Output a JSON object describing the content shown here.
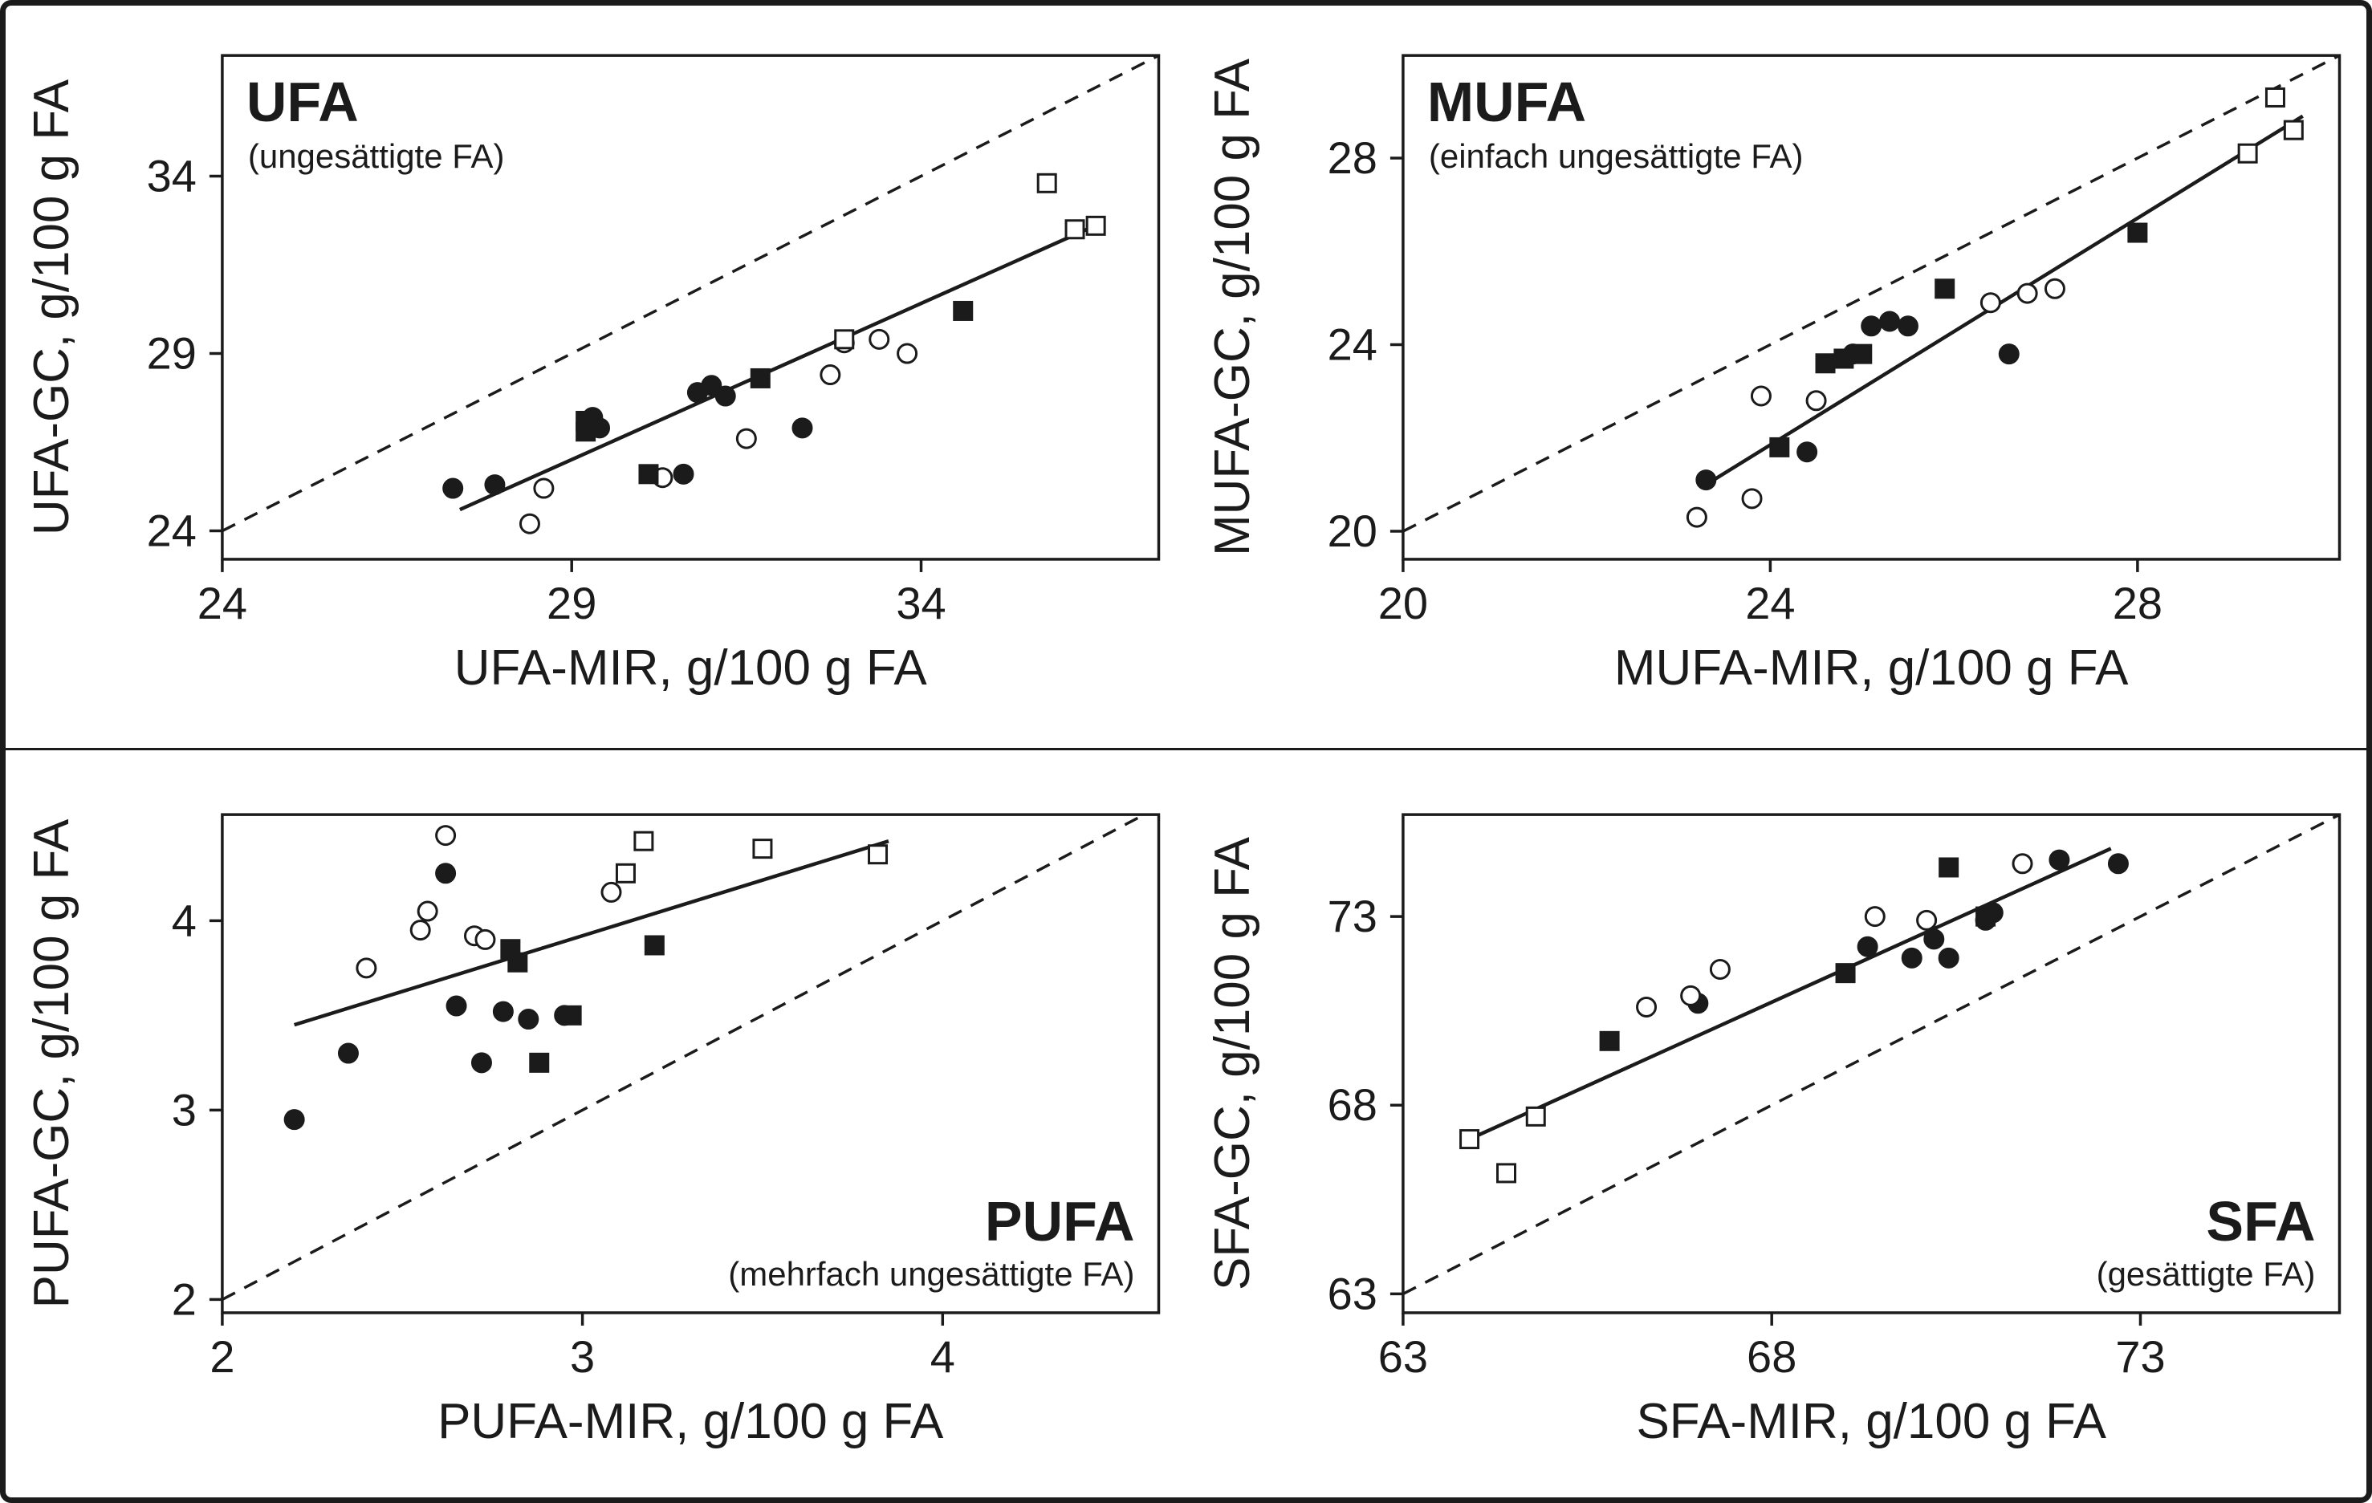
{
  "figure": {
    "background": "#ffffff",
    "ink": "#1b1b1b",
    "description": "Four scatter plots comparing GC vs MIR fatty acid measurements with solid regression line and dashed identity line"
  },
  "chart_data": [
    {
      "type": "scatter",
      "panel": "UFA",
      "title": "UFA",
      "subtitle": "(ungesättigte FA)",
      "title_position": "top-left",
      "xlabel": "UFA-MIR, g/100 g FA",
      "ylabel": "UFA-GC, g/100 g FA",
      "xlim": [
        24,
        37.4
      ],
      "ylim": [
        23.2,
        37.4
      ],
      "xticks": [
        24,
        29,
        34
      ],
      "yticks": [
        24,
        29,
        34
      ],
      "grid": false,
      "legend": "none",
      "identity_line": {
        "style": "dashed",
        "equation": "y = x"
      },
      "trend_line": {
        "style": "solid",
        "x1": 27.4,
        "y1": 24.6,
        "x2": 36.6,
        "y2": 32.7
      },
      "series": [
        {
          "name": "filled-circle",
          "marker": "circle",
          "fill": "#1b1b1b",
          "points": [
            [
              27.3,
              25.2
            ],
            [
              27.9,
              25.3
            ],
            [
              29.3,
              27.2
            ],
            [
              29.4,
              26.9
            ],
            [
              30.6,
              25.6
            ],
            [
              30.8,
              27.9
            ],
            [
              31.0,
              28.1
            ],
            [
              31.2,
              27.8
            ],
            [
              32.3,
              26.9
            ]
          ]
        },
        {
          "name": "open-circle",
          "marker": "circle",
          "fill": "#ffffff",
          "points": [
            [
              28.4,
              24.2
            ],
            [
              28.6,
              25.2
            ],
            [
              30.3,
              25.5
            ],
            [
              31.5,
              26.6
            ],
            [
              32.7,
              28.4
            ],
            [
              32.9,
              29.3
            ],
            [
              33.4,
              29.4
            ],
            [
              33.8,
              29.0
            ]
          ]
        },
        {
          "name": "filled-square",
          "marker": "square",
          "fill": "#1b1b1b",
          "points": [
            [
              29.2,
              27.1
            ],
            [
              29.2,
              26.8
            ],
            [
              30.1,
              25.6
            ],
            [
              31.7,
              28.3
            ],
            [
              34.6,
              30.2
            ]
          ]
        },
        {
          "name": "open-square",
          "marker": "square",
          "fill": "#ffffff",
          "points": [
            [
              32.9,
              29.4
            ],
            [
              35.8,
              33.8
            ],
            [
              36.2,
              32.5
            ],
            [
              36.5,
              32.6
            ]
          ]
        }
      ]
    },
    {
      "type": "scatter",
      "panel": "MUFA",
      "title": "MUFA",
      "subtitle": "(einfach ungesättigte FA)",
      "title_position": "top-left",
      "xlabel": "MUFA-MIR, g/100 g FA",
      "ylabel": "MUFA-GC, g/100 g FA",
      "xlim": [
        20,
        30.2
      ],
      "ylim": [
        19.4,
        30.2
      ],
      "xticks": [
        20,
        24,
        28
      ],
      "yticks": [
        20,
        24,
        28
      ],
      "grid": false,
      "legend": "none",
      "identity_line": {
        "style": "dashed",
        "equation": "y = x"
      },
      "trend_line": {
        "style": "solid",
        "x1": 23.3,
        "y1": 21.0,
        "x2": 29.8,
        "y2": 28.9
      },
      "series": [
        {
          "name": "filled-circle",
          "marker": "circle",
          "fill": "#1b1b1b",
          "points": [
            [
              23.3,
              21.1
            ],
            [
              24.4,
              21.7
            ],
            [
              24.9,
              23.8
            ],
            [
              25.1,
              24.4
            ],
            [
              25.3,
              24.5
            ],
            [
              25.5,
              24.4
            ],
            [
              26.6,
              23.8
            ]
          ]
        },
        {
          "name": "open-circle",
          "marker": "circle",
          "fill": "#ffffff",
          "points": [
            [
              23.2,
              20.3
            ],
            [
              23.8,
              20.7
            ],
            [
              23.9,
              22.9
            ],
            [
              24.5,
              22.8
            ],
            [
              26.4,
              24.9
            ],
            [
              26.8,
              25.1
            ],
            [
              27.1,
              25.2
            ]
          ]
        },
        {
          "name": "filled-square",
          "marker": "square",
          "fill": "#1b1b1b",
          "points": [
            [
              24.1,
              21.8
            ],
            [
              24.6,
              23.6
            ],
            [
              24.8,
              23.7
            ],
            [
              25.0,
              23.8
            ],
            [
              25.9,
              25.2
            ],
            [
              28.0,
              26.4
            ]
          ]
        },
        {
          "name": "open-square",
          "marker": "square",
          "fill": "#ffffff",
          "points": [
            [
              29.2,
              28.1
            ],
            [
              29.5,
              29.3
            ],
            [
              29.7,
              28.6
            ]
          ]
        }
      ]
    },
    {
      "type": "scatter",
      "panel": "PUFA",
      "title": "PUFA",
      "subtitle": "(mehrfach ungesättigte FA)",
      "title_position": "bottom-right",
      "xlabel": "PUFA-MIR, g/100 g FA",
      "ylabel": "PUFA-GC, g/100 g FA",
      "xlim": [
        2,
        4.6
      ],
      "ylim": [
        1.93,
        4.56
      ],
      "xticks": [
        2,
        3,
        4
      ],
      "yticks": [
        2,
        3,
        4
      ],
      "grid": false,
      "legend": "none",
      "identity_line": {
        "style": "dashed",
        "equation": "y = x"
      },
      "trend_line": {
        "style": "solid",
        "x1": 2.2,
        "y1": 3.45,
        "x2": 3.85,
        "y2": 4.42
      },
      "series": [
        {
          "name": "filled-circle",
          "marker": "circle",
          "fill": "#1b1b1b",
          "points": [
            [
              2.2,
              2.95
            ],
            [
              2.35,
              3.3
            ],
            [
              2.62,
              4.25
            ],
            [
              2.65,
              3.55
            ],
            [
              2.72,
              3.25
            ],
            [
              2.78,
              3.52
            ],
            [
              2.85,
              3.48
            ],
            [
              2.95,
              3.5
            ]
          ]
        },
        {
          "name": "open-circle",
          "marker": "circle",
          "fill": "#ffffff",
          "points": [
            [
              2.4,
              3.75
            ],
            [
              2.55,
              3.95
            ],
            [
              2.57,
              4.05
            ],
            [
              2.62,
              4.45
            ],
            [
              2.7,
              3.92
            ],
            [
              2.73,
              3.9
            ],
            [
              3.08,
              4.15
            ]
          ]
        },
        {
          "name": "filled-square",
          "marker": "square",
          "fill": "#1b1b1b",
          "points": [
            [
              2.8,
              3.85
            ],
            [
              2.82,
              3.78
            ],
            [
              2.88,
              3.25
            ],
            [
              2.97,
              3.5
            ],
            [
              3.2,
              3.87
            ]
          ]
        },
        {
          "name": "open-square",
          "marker": "square",
          "fill": "#ffffff",
          "points": [
            [
              3.12,
              4.25
            ],
            [
              3.17,
              4.42
            ],
            [
              3.5,
              4.38
            ],
            [
              3.82,
              4.35
            ]
          ]
        }
      ]
    },
    {
      "type": "scatter",
      "panel": "SFA",
      "title": "SFA",
      "subtitle": "(gesättigte FA)",
      "title_position": "bottom-right",
      "xlabel": "SFA-MIR, g/100 g FA",
      "ylabel": "SFA-GC, g/100 g FA",
      "xlim": [
        63,
        75.7
      ],
      "ylim": [
        62.5,
        75.7
      ],
      "xticks": [
        63,
        68,
        73
      ],
      "yticks": [
        63,
        68,
        73
      ],
      "grid": false,
      "legend": "none",
      "identity_line": {
        "style": "dashed",
        "equation": "y = x"
      },
      "trend_line": {
        "style": "solid",
        "x1": 63.9,
        "y1": 67.1,
        "x2": 72.6,
        "y2": 74.8
      },
      "series": [
        {
          "name": "filled-circle",
          "marker": "circle",
          "fill": "#1b1b1b",
          "points": [
            [
              67.0,
              70.7
            ],
            [
              69.3,
              72.2
            ],
            [
              69.9,
              71.9
            ],
            [
              70.2,
              72.4
            ],
            [
              70.4,
              71.9
            ],
            [
              70.9,
              72.9
            ],
            [
              71.0,
              73.1
            ],
            [
              71.9,
              74.5
            ],
            [
              72.7,
              74.4
            ]
          ]
        },
        {
          "name": "open-circle",
          "marker": "circle",
          "fill": "#ffffff",
          "points": [
            [
              66.3,
              70.6
            ],
            [
              66.9,
              70.9
            ],
            [
              67.3,
              71.6
            ],
            [
              69.4,
              73.0
            ],
            [
              70.1,
              72.9
            ],
            [
              71.4,
              74.4
            ]
          ]
        },
        {
          "name": "filled-square",
          "marker": "square",
          "fill": "#1b1b1b",
          "points": [
            [
              65.8,
              69.7
            ],
            [
              69.0,
              71.5
            ],
            [
              70.4,
              74.3
            ],
            [
              70.9,
              73.0
            ]
          ]
        },
        {
          "name": "open-square",
          "marker": "square",
          "fill": "#ffffff",
          "points": [
            [
              63.9,
              67.1
            ],
            [
              64.4,
              66.2
            ],
            [
              64.8,
              67.7
            ]
          ]
        }
      ]
    }
  ]
}
